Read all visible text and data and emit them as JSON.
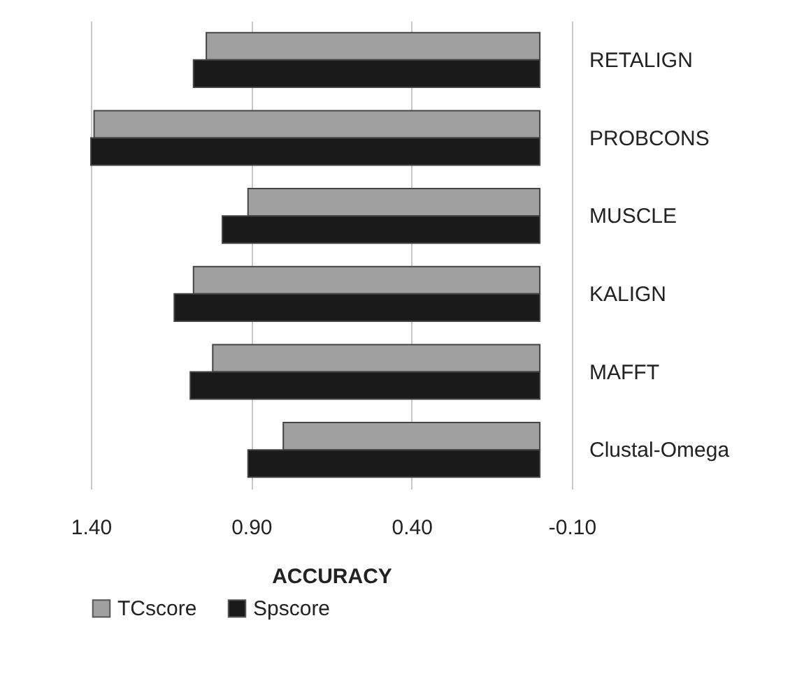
{
  "chart_data": {
    "type": "bar",
    "orientation": "horizontal",
    "xlabel": "ACCURACY",
    "categories": [
      "RETALIGN",
      "PROBCONS",
      "MUSCLE",
      "KALIGN",
      "MAFFT",
      "Clustal-Omega"
    ],
    "series": [
      {
        "name": "TCscore",
        "color": "#a0a0a0",
        "values": [
          1.04,
          1.39,
          0.91,
          1.08,
          1.02,
          0.8
        ]
      },
      {
        "name": "Spscore",
        "color": "#1a1a1a",
        "values": [
          1.08,
          1.4,
          0.99,
          1.14,
          1.09,
          0.91
        ]
      }
    ],
    "xlim": [
      1.4,
      -0.1
    ],
    "xticks": [
      {
        "value": 1.4,
        "label": "1.40"
      },
      {
        "value": 0.9,
        "label": "0.90"
      },
      {
        "value": 0.4,
        "label": "0.40"
      },
      {
        "value": -0.1,
        "label": "-0.10"
      }
    ],
    "grid": "x",
    "legend": "bottom"
  }
}
